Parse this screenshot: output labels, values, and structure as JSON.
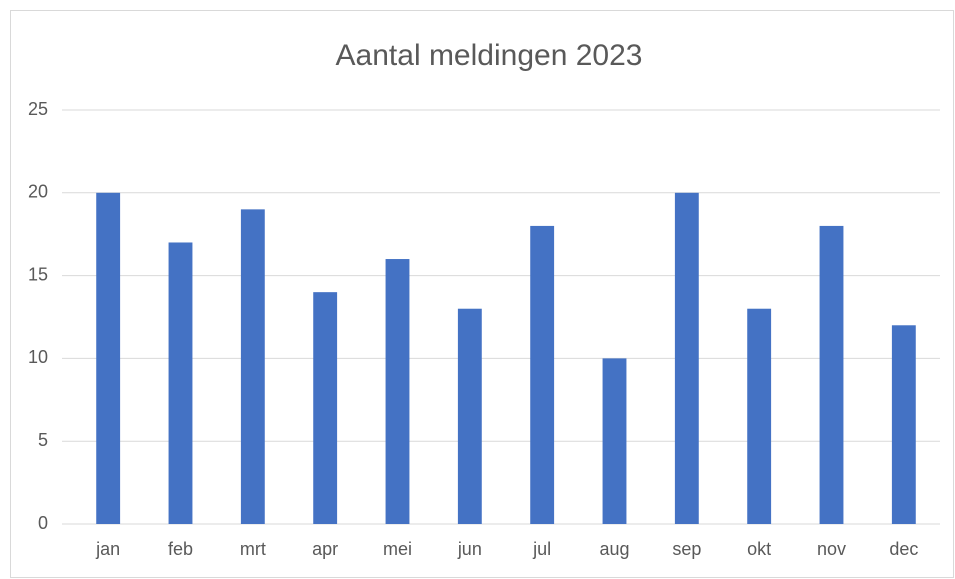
{
  "chart_data": {
    "type": "bar",
    "title": "Aantal meldingen 2023",
    "categories": [
      "jan",
      "feb",
      "mrt",
      "apr",
      "mei",
      "jun",
      "jul",
      "aug",
      "sep",
      "okt",
      "nov",
      "dec"
    ],
    "values": [
      20,
      17,
      19,
      14,
      16,
      13,
      18,
      10,
      20,
      13,
      18,
      12
    ],
    "color": "#4472c4",
    "ylim": [
      0,
      25
    ],
    "yticks": [
      0,
      5,
      10,
      15,
      20,
      25
    ],
    "grid": true
  }
}
